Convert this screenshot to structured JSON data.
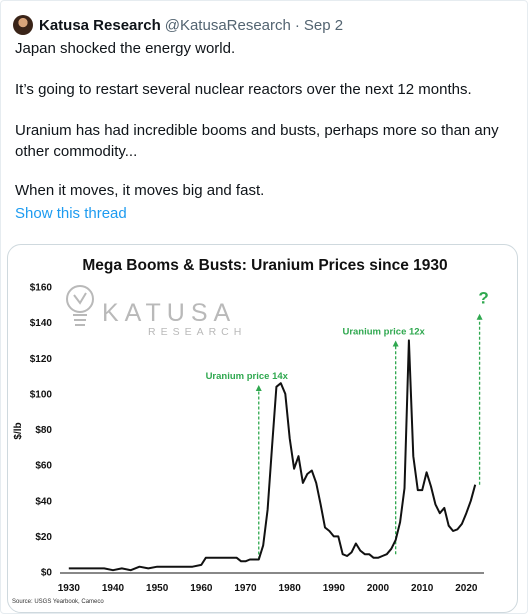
{
  "tweet": {
    "author": "Katusa Research",
    "handle": "@KatusaResearch",
    "separator": "·",
    "date": "Sep 2",
    "lines": [
      "Japan shocked the energy world.",
      "It’s going to restart several nuclear reactors over the next 12 months.",
      "Uranium has had incredible booms and busts, perhaps more so than any",
      "other commodity...",
      "When it moves, it moves big and fast."
    ],
    "show_thread": "Show this thread"
  },
  "logo": {
    "main": "KATUSA",
    "sub": "RESEARCH"
  },
  "colors": {
    "line": "#111111",
    "annotation": "#2fa84f",
    "link": "#1d9bf0"
  },
  "chart_data": {
    "type": "line",
    "title": "Mega Booms & Busts: Uranium Prices since 1930",
    "ylabel": "$/lb",
    "xlabel": "",
    "xlim": [
      1928,
      2024
    ],
    "ylim": [
      0,
      160
    ],
    "x_ticks": [
      1930,
      1940,
      1950,
      1960,
      1970,
      1980,
      1990,
      2000,
      2010,
      2020
    ],
    "y_ticks": [
      0,
      20,
      40,
      60,
      80,
      100,
      120,
      140,
      160
    ],
    "y_tick_labels": [
      "$0",
      "$20",
      "$40",
      "$60",
      "$80",
      "$100",
      "$120",
      "$140",
      "$160"
    ],
    "grid": false,
    "source": "Source: USGS Yearbook, Cameco",
    "series": [
      {
        "x": [
          1930,
          1933,
          1936,
          1938,
          1940,
          1942,
          1944,
          1946,
          1948,
          1950,
          1952,
          1955,
          1958,
          1960,
          1961,
          1964,
          1966,
          1968,
          1969,
          1970,
          1971,
          1972,
          1973,
          1974,
          1975,
          1976,
          1977,
          1978,
          1979,
          1980,
          1981,
          1982,
          1983,
          1984,
          1985,
          1986,
          1987,
          1988,
          1989,
          1990,
          1991,
          1992,
          1993,
          1994,
          1995,
          1996,
          1997,
          1998,
          1999,
          2000,
          2001,
          2002,
          2003,
          2004,
          2005,
          2006,
          2007,
          2008,
          2009,
          2010,
          2011,
          2012,
          2013,
          2014,
          2015,
          2016,
          2017,
          2018,
          2019,
          2020,
          2021,
          2022
        ],
        "y": [
          2,
          2,
          2,
          2,
          1,
          2,
          1,
          3,
          2,
          3,
          3,
          3,
          3,
          4,
          8,
          8,
          8,
          8,
          6,
          6,
          7,
          7,
          7,
          15,
          35,
          70,
          104,
          106,
          100,
          75,
          58,
          65,
          50,
          55,
          57,
          50,
          38,
          25,
          23,
          20,
          20,
          10,
          9,
          11,
          16,
          12,
          10,
          10,
          8,
          8,
          9,
          10,
          13,
          18,
          28,
          47,
          130,
          65,
          46,
          46,
          56,
          48,
          38,
          33,
          36,
          26,
          23,
          24,
          27,
          33,
          40,
          49
        ]
      }
    ],
    "annotations": [
      {
        "text": "Uranium price 14x",
        "x": 1973,
        "y_from": 7,
        "y_to": 105
      },
      {
        "text": "Uranium price 12x",
        "x": 2004,
        "y_from": 10,
        "y_to": 130
      },
      {
        "text": "?",
        "x": 2023,
        "y_from": 49,
        "y_to": 145
      }
    ]
  }
}
